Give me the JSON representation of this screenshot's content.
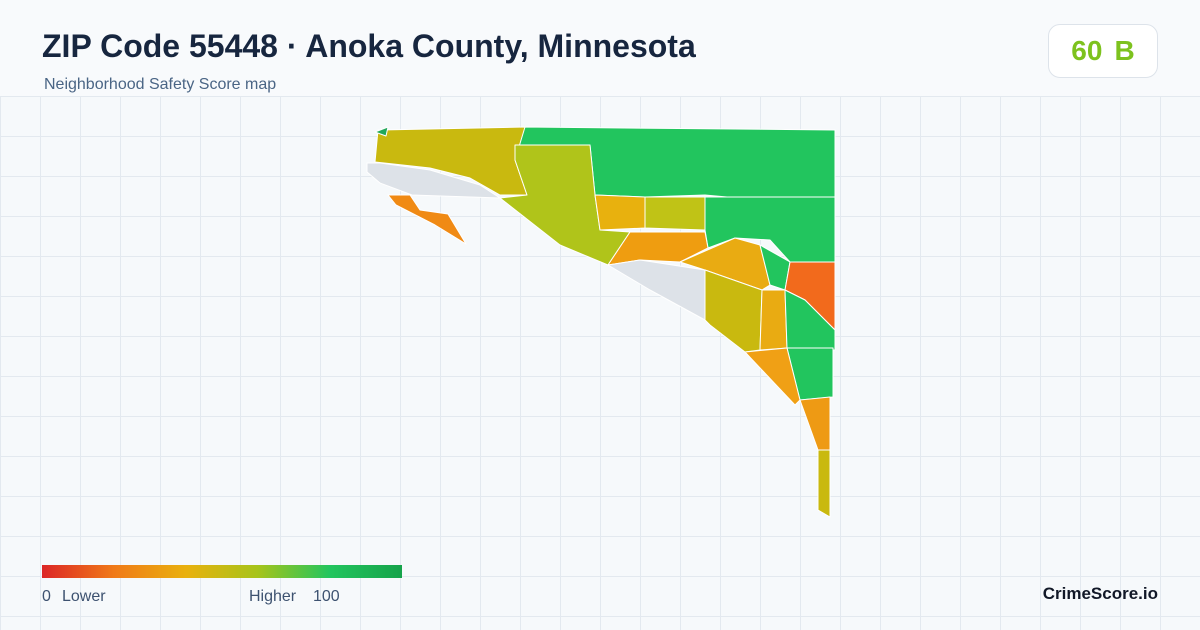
{
  "header": {
    "title": "ZIP Code 55448 · Anoka County, Minnesota",
    "subtitle": "Neighborhood Safety Score map"
  },
  "badge": {
    "score": "60",
    "grade": "B"
  },
  "legend": {
    "min": "0",
    "min_label": "Lower",
    "max_label": "Higher",
    "max": "100"
  },
  "brand": "CrimeScore.io"
}
